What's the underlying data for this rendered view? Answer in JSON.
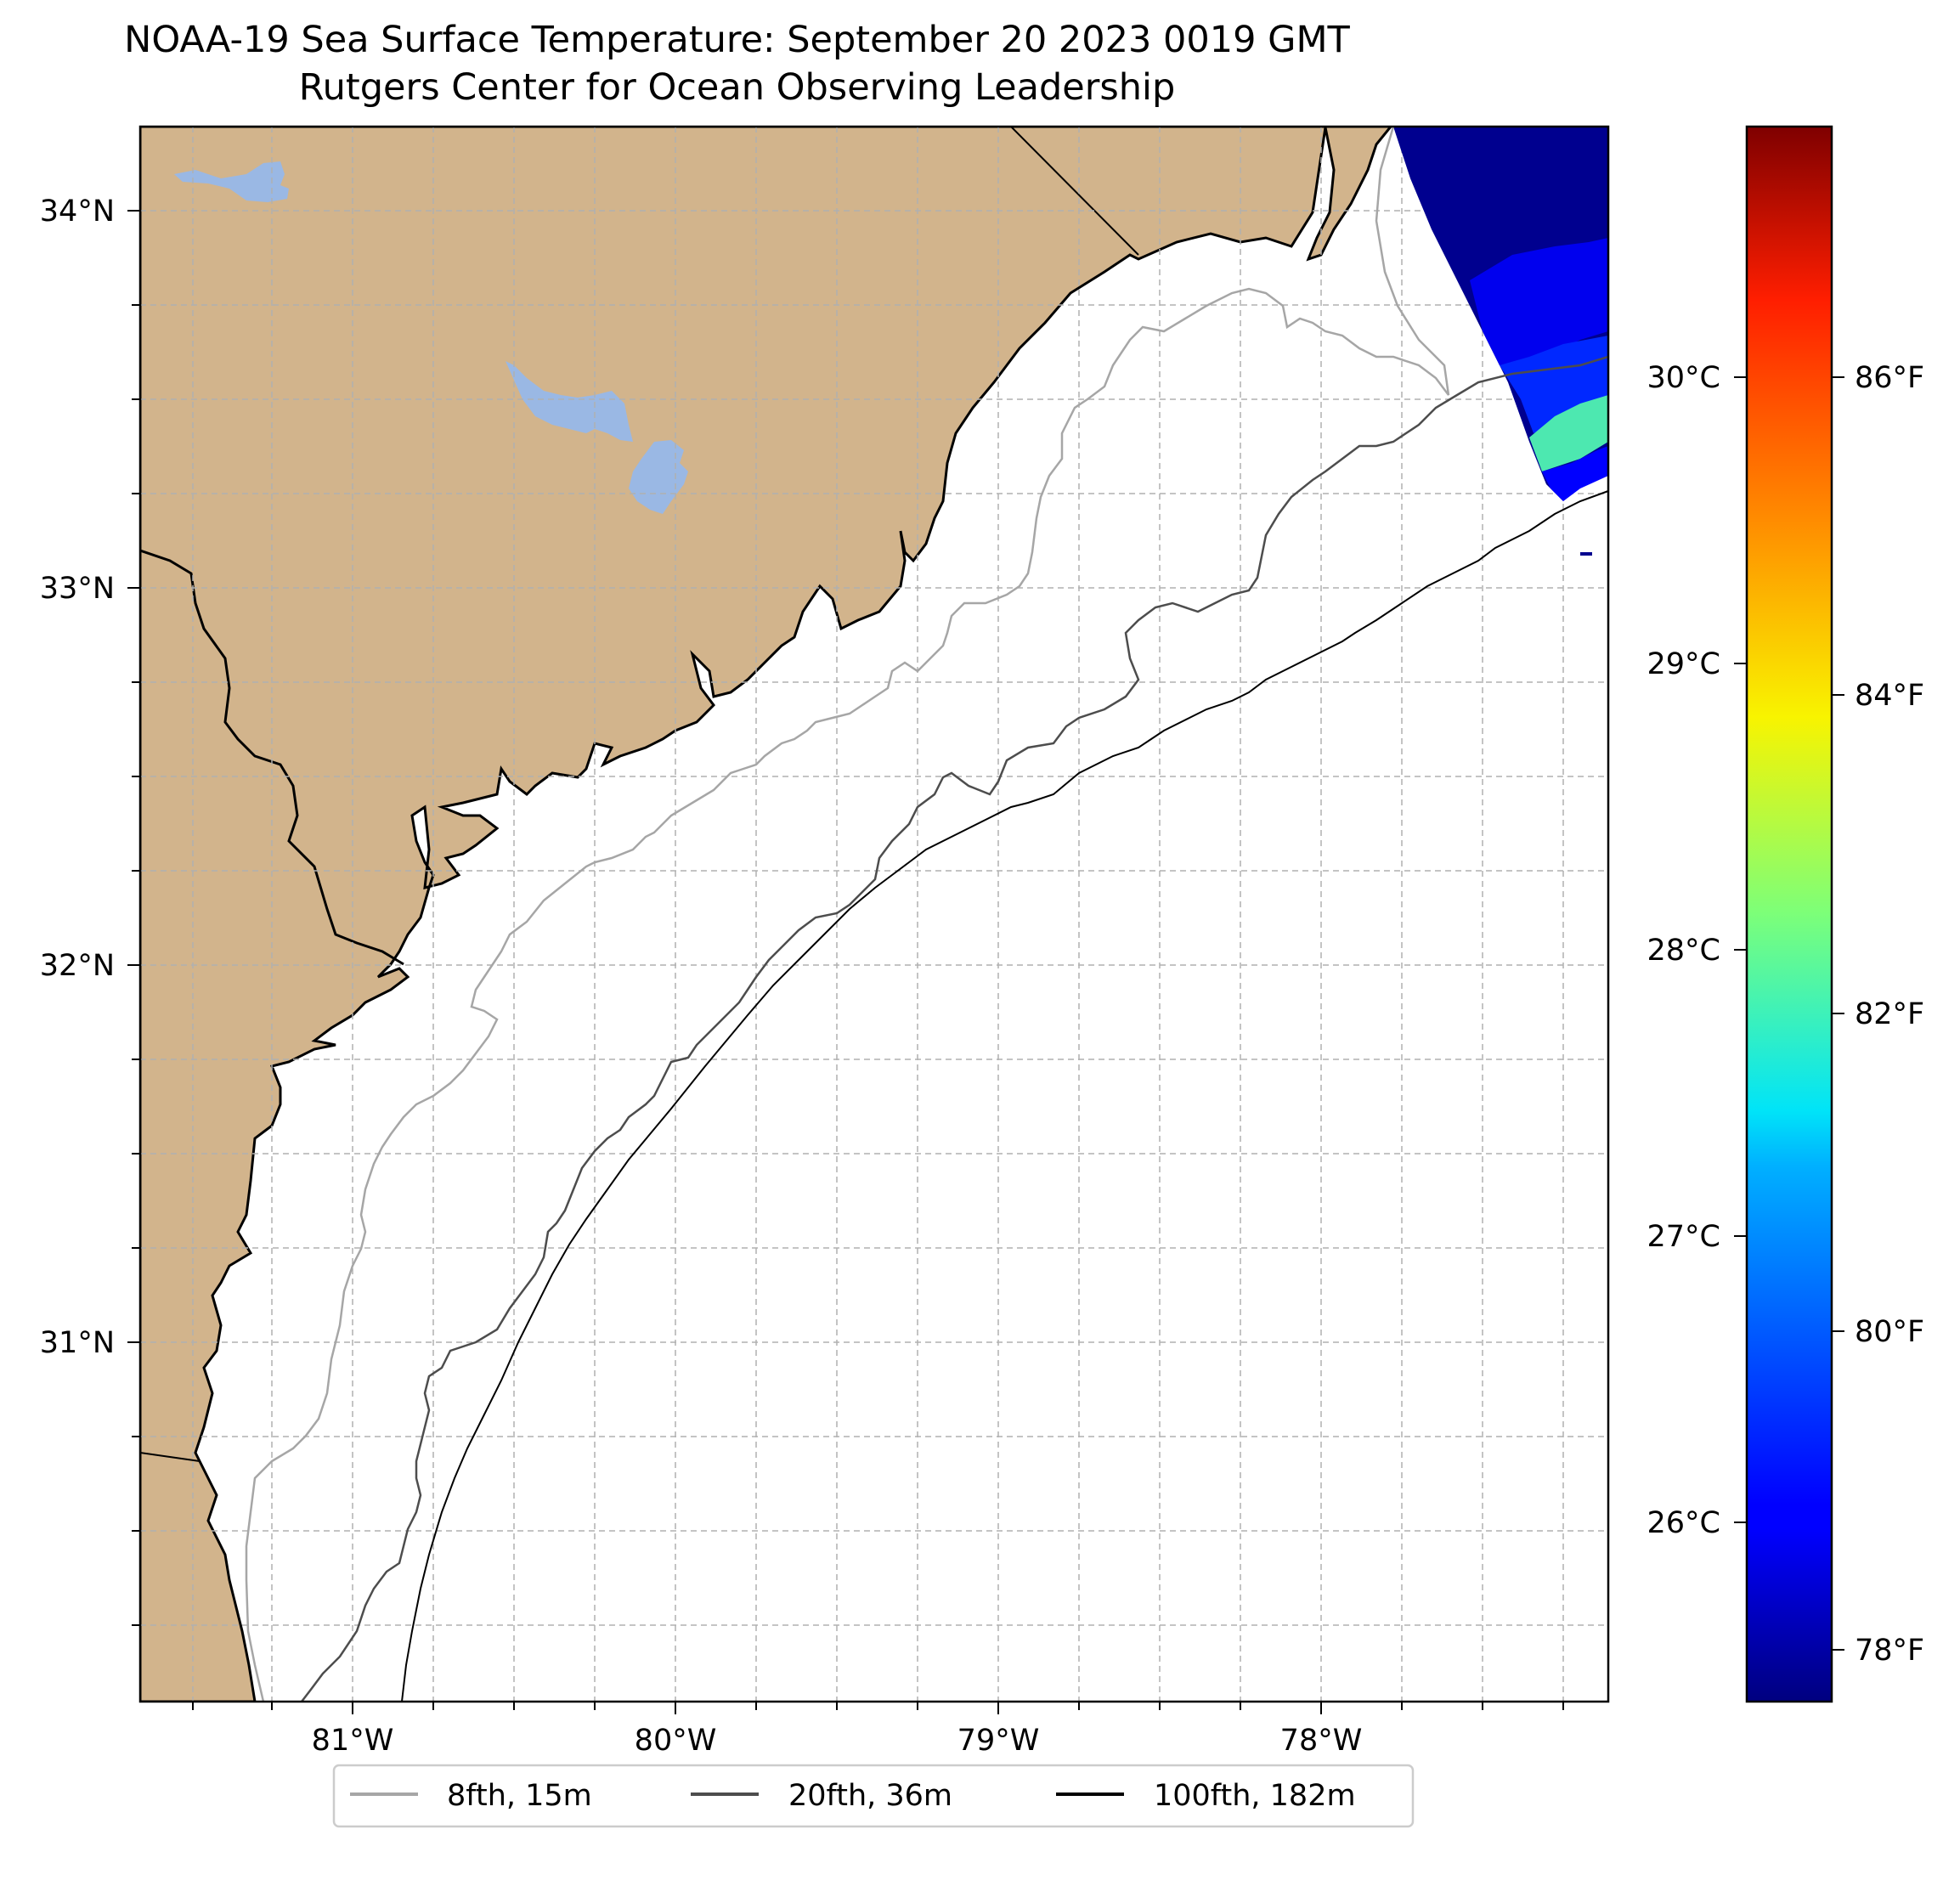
{
  "title": {
    "line1": "NOAA-19 Sea Surface Temperature: September 20 2023 0019 GMT",
    "line2": "Rutgers Center for Ocean Observing Leadership"
  },
  "colors": {
    "land": "#d2b48c",
    "lakes": "#9ab8e4",
    "ocean": "#ffffff",
    "isobath_8fth": "#a6a6a6",
    "isobath_20fth": "#4d4d4d",
    "isobath_100fth": "#000000",
    "colormap": "jet"
  },
  "map": {
    "gridlines": "dashed grey",
    "lat_ticks": [
      "34°N",
      "33°N",
      "32°N",
      "31°N"
    ],
    "lon_ticks": [
      "81°W",
      "80°W",
      "79°W",
      "78°W"
    ]
  },
  "colorbar": {
    "celsius_ticks": [
      "30°C",
      "29°C",
      "28°C",
      "27°C",
      "26°C"
    ],
    "fahrenheit_ticks": [
      "86°F",
      "84°F",
      "82°F",
      "80°F",
      "78°F"
    ]
  },
  "legend": {
    "placement": "bottom-center",
    "items": [
      {
        "label": "8fth, 15m",
        "color": "#a6a6a6"
      },
      {
        "label": "20fth, 36m",
        "color": "#4d4d4d"
      },
      {
        "label": "100fth, 182m",
        "color": "#000000"
      }
    ]
  }
}
